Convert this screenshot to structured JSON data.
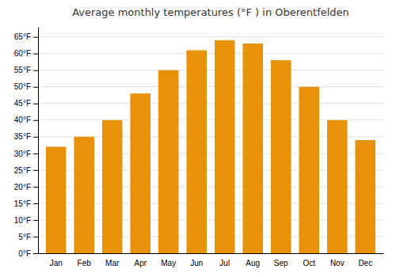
{
  "chart_data": {
    "type": "bar",
    "title": "Average monthly temperatures (°F ) in Oberentfelden",
    "categories": [
      "Jan",
      "Feb",
      "Mar",
      "Apr",
      "May",
      "Jun",
      "Jul",
      "Aug",
      "Sep",
      "Oct",
      "Nov",
      "Dec"
    ],
    "values": [
      32,
      35,
      40,
      48,
      55,
      61,
      64,
      63,
      58,
      50,
      40,
      34
    ],
    "color": "#E8920A",
    "ylim": [
      0,
      68
    ],
    "yticks": [
      {
        "value": 0,
        "label": "0°F"
      },
      {
        "value": 5,
        "label": "5°F"
      },
      {
        "value": 10,
        "label": "10°F"
      },
      {
        "value": 15,
        "label": "15°F"
      },
      {
        "value": 20,
        "label": "20°F"
      },
      {
        "value": 25,
        "label": "25°F"
      },
      {
        "value": 30,
        "label": "30°F"
      },
      {
        "value": 35,
        "label": "35°F"
      },
      {
        "value": 40,
        "label": "40°F"
      },
      {
        "value": 45,
        "label": "45°F"
      },
      {
        "value": 50,
        "label": "50°F"
      },
      {
        "value": 55,
        "label": "55°F"
      },
      {
        "value": 60,
        "label": "60°F"
      },
      {
        "value": 65,
        "label": "65°F"
      }
    ],
    "grid": true
  }
}
